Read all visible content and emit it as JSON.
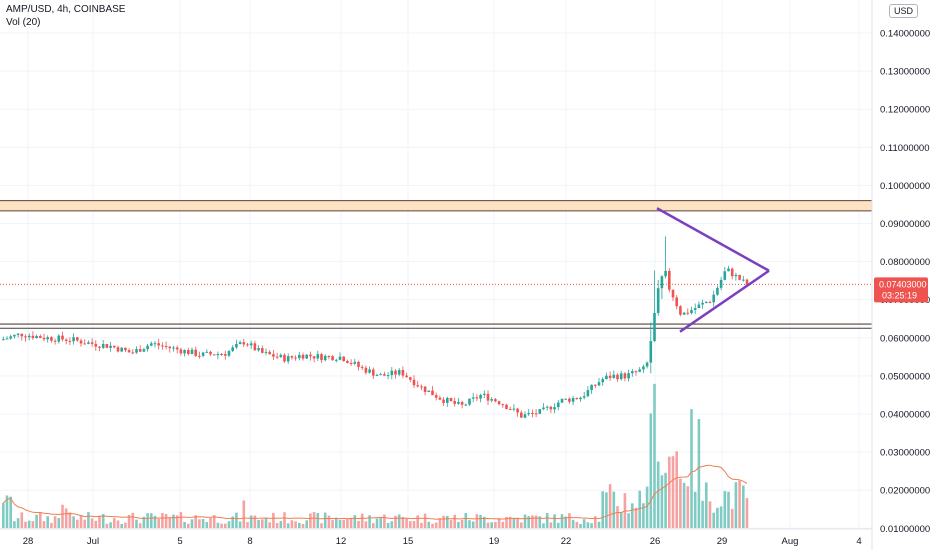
{
  "header": {
    "symbol_line": "AMP/USD, 4h, COINBASE",
    "volume_line": "Vol (20)"
  },
  "currency_button": "USD",
  "price_axis": {
    "labels": [
      "0.14000000",
      "0.13000000",
      "0.12000000",
      "0.11000000",
      "0.10000000",
      "0.09000000",
      "0.08000000",
      "0.07000000",
      "0.06000000",
      "0.05000000",
      "0.04000000",
      "0.03000000",
      "0.02000000",
      "0.01000000"
    ],
    "values": [
      0.14,
      0.13,
      0.12,
      0.11,
      0.1,
      0.09,
      0.08,
      0.07,
      0.06,
      0.05,
      0.04,
      0.03,
      0.02,
      0.01
    ]
  },
  "last_price_tag": {
    "price": "0.07403000",
    "countdown": "03:25:19",
    "value": 0.07403,
    "color": "#ef5350"
  },
  "time_axis": {
    "labels": [
      "28",
      "Jul",
      "5",
      "8",
      "12",
      "15",
      "19",
      "22",
      "26",
      "29",
      "Aug",
      "4"
    ]
  },
  "colors": {
    "up": "#26a69a",
    "down": "#ef5350",
    "volume_up": "#7fcbc3",
    "volume_down": "#f5a3a2",
    "volume_ma": "#ef7e50",
    "triangle": "#7b3fbf",
    "zone_fill": "#fde3c2",
    "zone_line": "#5d4037",
    "support_line": "#3e3e3e",
    "grid": "#f0f3fa"
  },
  "chart_data": {
    "type": "candlestick",
    "title": "AMP/USD, 4h, COINBASE",
    "ylim": [
      0.0077,
      0.145
    ],
    "resistance_zone": [
      0.0933,
      0.096
    ],
    "support_zone": [
      0.0625,
      0.0636
    ],
    "triangle": {
      "upper": {
        "from": [
          "Jul 26",
          0.094
        ],
        "to": [
          "Jul 30",
          0.0776
        ]
      },
      "lower": {
        "from": [
          "Jul 27",
          0.0616
        ],
        "to": [
          "Jul 30",
          0.0776
        ]
      }
    },
    "series": [
      {
        "name": "Price",
        "x_dates": [
          "Jun 28",
          "Jul 1",
          "Jul 5",
          "Jul 8",
          "Jul 12",
          "Jul 15",
          "Jul 19",
          "Jul 22",
          "Jul 26",
          "Jul 29"
        ],
        "close_approx": [
          0.0605,
          0.0595,
          0.0578,
          0.0575,
          0.056,
          0.0505,
          0.0418,
          0.0455,
          0.072,
          0.074
        ]
      },
      {
        "name": "Vol (20)",
        "peak": "Jul 26"
      }
    ]
  }
}
